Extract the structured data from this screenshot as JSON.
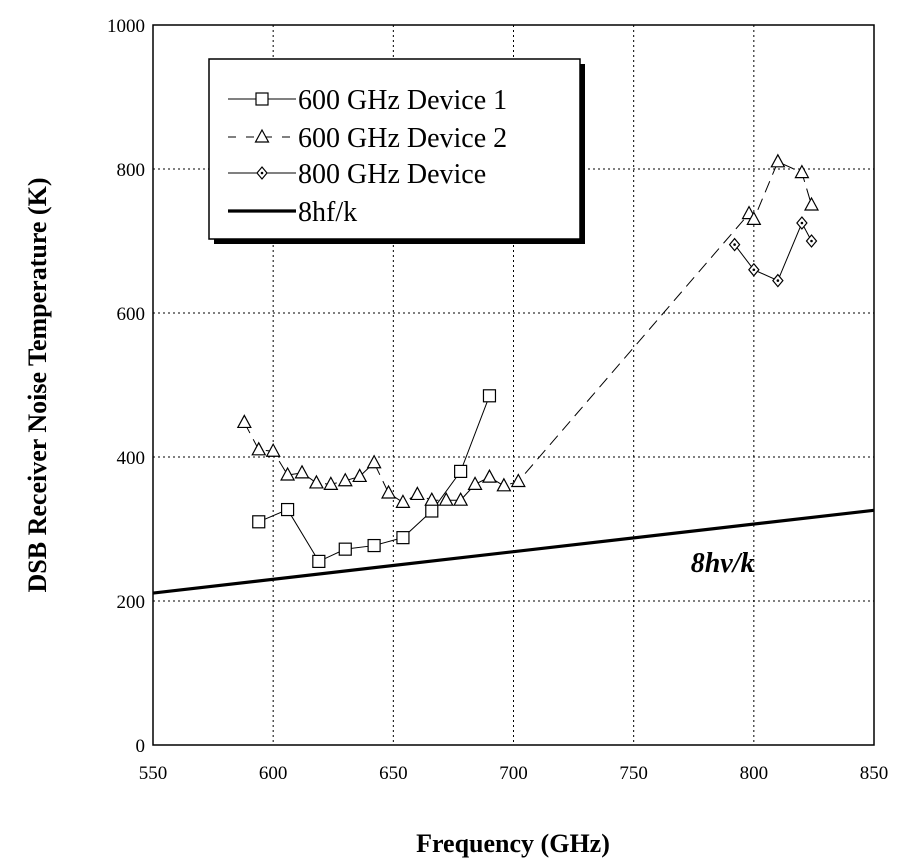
{
  "chart_data": {
    "type": "line",
    "xlabel": "Frequency (GHz)",
    "ylabel": "DSB Receiver Noise Temperature (K)",
    "xlim": [
      550,
      850
    ],
    "ylim": [
      0,
      1000
    ],
    "xticks": [
      550,
      600,
      650,
      700,
      750,
      800,
      850
    ],
    "yticks": [
      0,
      200,
      400,
      600,
      800,
      1000
    ],
    "grid": true,
    "legend_position": "top-left",
    "series": [
      {
        "name": "600 GHz Device 1",
        "marker": "square",
        "line": "solid",
        "x": [
          594,
          606,
          619,
          630,
          642,
          654,
          666,
          678,
          690
        ],
        "y": [
          310,
          327,
          255,
          272,
          277,
          288,
          325,
          380,
          485
        ]
      },
      {
        "name": "600 GHz Device 2",
        "marker": "triangle",
        "line": "dashed",
        "x": [
          588,
          594,
          600,
          606,
          612,
          618,
          624,
          630,
          636,
          642,
          648,
          654,
          660,
          666,
          672,
          678,
          684,
          690,
          696,
          702,
          798,
          800,
          810,
          820,
          824
        ],
        "y": [
          448,
          410,
          408,
          375,
          378,
          364,
          362,
          367,
          373,
          392,
          350,
          337,
          348,
          340,
          340,
          340,
          362,
          372,
          360,
          366,
          738,
          730,
          810,
          795,
          750
        ]
      },
      {
        "name": "800 GHz Device",
        "marker": "diamond",
        "line": "solid",
        "x": [
          792,
          800,
          810,
          820,
          824
        ],
        "y": [
          695,
          660,
          645,
          725,
          700
        ]
      },
      {
        "name": "8hf/k",
        "marker": "none",
        "line": "thick",
        "x": [
          550,
          850
        ],
        "y": [
          211,
          326
        ]
      }
    ],
    "annotations": [
      {
        "text": "8hν/k",
        "x": 787,
        "y": 240
      }
    ]
  }
}
